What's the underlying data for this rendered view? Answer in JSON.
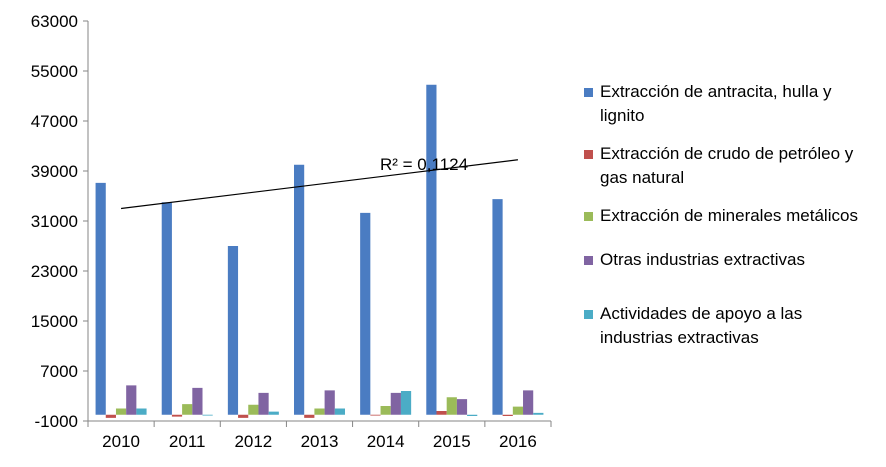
{
  "chart_data": {
    "type": "bar",
    "categories": [
      "2010",
      "2011",
      "2012",
      "2013",
      "2014",
      "2015",
      "2016"
    ],
    "series": [
      {
        "name": "Extracción de antracita, hulla y lignito",
        "color": "#4a7cc2",
        "values": [
          37100,
          34000,
          27000,
          40000,
          32300,
          52800,
          34500
        ]
      },
      {
        "name": "Extracción de crudo de petróleo y gas natural",
        "color": "#c0504d",
        "values": [
          -500,
          -300,
          -500,
          -500,
          0,
          600,
          -200
        ]
      },
      {
        "name": "Extracción de minerales metálicos",
        "color": "#9bbb59",
        "values": [
          1000,
          1700,
          1600,
          1000,
          1400,
          2800,
          1300
        ]
      },
      {
        "name": "Otras industrias extractivas",
        "color": "#8064a2",
        "values": [
          4700,
          4300,
          3500,
          3900,
          3500,
          2500,
          3900
        ]
      },
      {
        "name": "Actividades de apoyo a las industrias extractivas",
        "color": "#4bacc6",
        "values": [
          1000,
          0,
          500,
          1000,
          3800,
          -200,
          300
        ]
      }
    ],
    "y_ticks": [
      "63000",
      "55000",
      "47000",
      "39000",
      "31000",
      "23000",
      "15000",
      "7000",
      "-1000"
    ],
    "ylim": [
      -1000,
      63000
    ],
    "trendline": {
      "series": "Extracción de antracita, hulla y lignito",
      "label": "R² = 0,1124",
      "start": 33000,
      "end": 40800
    },
    "legend_position": "right",
    "grid": false
  }
}
